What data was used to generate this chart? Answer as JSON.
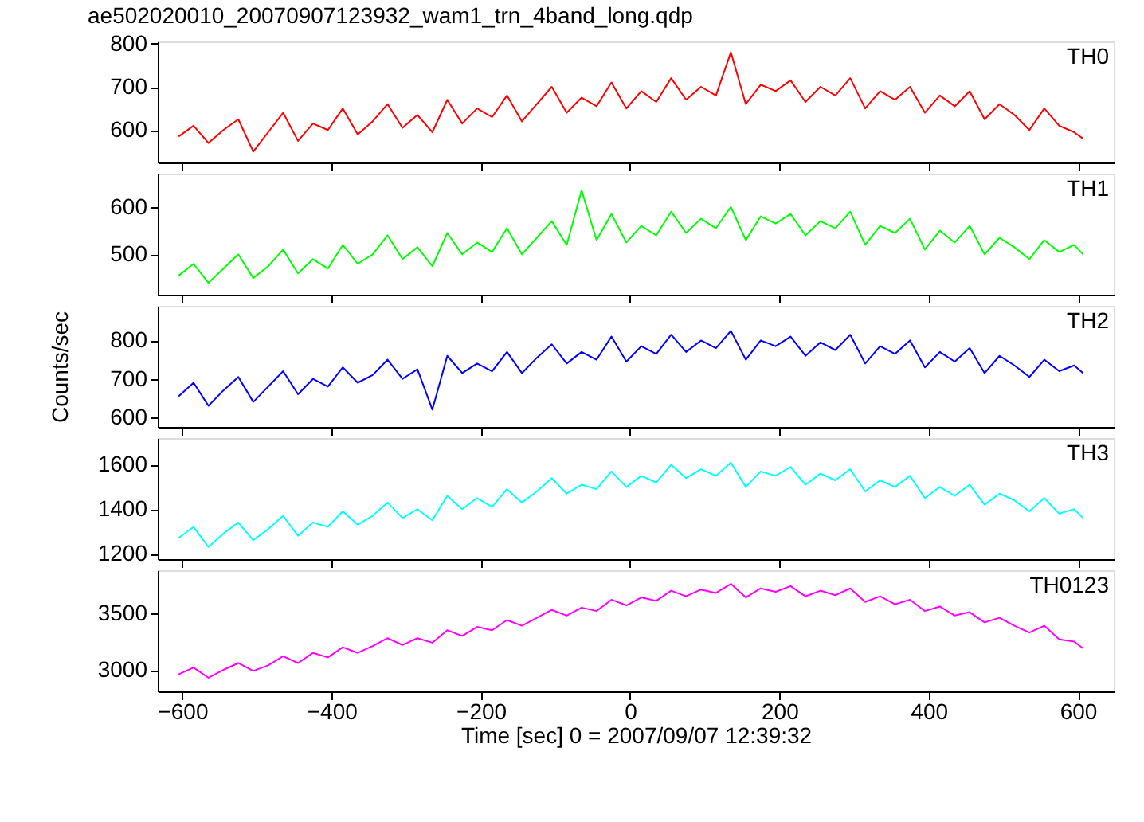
{
  "chart_data": [
    {
      "type": "line",
      "title": "ae502020010_20070907123932_wam1_trn_4band_long.qdp",
      "tick_labels": "y",
      "xlim": [
        -633,
        648
      ],
      "xticks": [
        -600,
        -400,
        -200,
        0,
        200,
        400,
        600
      ],
      "ylim": [
        525,
        805
      ],
      "yticks": [
        600,
        700,
        800
      ],
      "x": [
        -605,
        -585,
        -565,
        -545,
        -525,
        -505,
        -485,
        -465,
        -445,
        -425,
        -405,
        -385,
        -365,
        -345,
        -325,
        -305,
        -285,
        -265,
        -245,
        -225,
        -205,
        -185,
        -165,
        -145,
        -125,
        -105,
        -85,
        -65,
        -45,
        -25,
        -5,
        15,
        35,
        55,
        75,
        95,
        115,
        135,
        155,
        175,
        195,
        215,
        235,
        255,
        275,
        295,
        315,
        335,
        355,
        375,
        395,
        415,
        435,
        455,
        475,
        495,
        515,
        535,
        555,
        575,
        595,
        607
      ],
      "series": [
        {
          "name": "TH0",
          "color": "#ff0000",
          "values": [
            585,
            610,
            570,
            600,
            625,
            550,
            595,
            640,
            575,
            615,
            600,
            650,
            590,
            620,
            660,
            605,
            635,
            595,
            670,
            615,
            650,
            630,
            680,
            620,
            660,
            700,
            640,
            675,
            655,
            710,
            650,
            690,
            665,
            720,
            670,
            700,
            680,
            780,
            660,
            705,
            690,
            715,
            665,
            700,
            680,
            720,
            650,
            690,
            670,
            700,
            640,
            680,
            655,
            690,
            625,
            660,
            635,
            600,
            650,
            610,
            595,
            580
          ]
        }
      ]
    },
    {
      "type": "line",
      "tick_labels": "y",
      "xlim": [
        -633,
        648
      ],
      "xticks": [
        -600,
        -400,
        -200,
        0,
        200,
        400,
        600
      ],
      "ylim": [
        415,
        670
      ],
      "yticks": [
        500,
        600
      ],
      "x": [
        -605,
        -585,
        -565,
        -545,
        -525,
        -505,
        -485,
        -465,
        -445,
        -425,
        -405,
        -385,
        -365,
        -345,
        -325,
        -305,
        -285,
        -265,
        -245,
        -225,
        -205,
        -185,
        -165,
        -145,
        -125,
        -105,
        -85,
        -65,
        -45,
        -25,
        -5,
        15,
        35,
        55,
        75,
        95,
        115,
        135,
        155,
        175,
        195,
        215,
        235,
        255,
        275,
        295,
        315,
        335,
        355,
        375,
        395,
        415,
        435,
        455,
        475,
        495,
        515,
        535,
        555,
        575,
        595,
        607
      ],
      "series": [
        {
          "name": "TH1",
          "color": "#00ff00",
          "values": [
            455,
            480,
            440,
            470,
            500,
            450,
            475,
            510,
            460,
            490,
            470,
            520,
            480,
            500,
            540,
            490,
            515,
            475,
            545,
            500,
            525,
            505,
            555,
            500,
            535,
            570,
            520,
            635,
            530,
            585,
            525,
            560,
            540,
            590,
            545,
            575,
            555,
            600,
            530,
            580,
            565,
            585,
            540,
            570,
            555,
            590,
            520,
            560,
            545,
            575,
            510,
            550,
            525,
            560,
            500,
            535,
            515,
            490,
            530,
            505,
            520,
            500
          ]
        }
      ]
    },
    {
      "type": "line",
      "tick_labels": "y",
      "ylabel": "Counts/sec",
      "xlim": [
        -633,
        648
      ],
      "xticks": [
        -600,
        -400,
        -200,
        0,
        200,
        400,
        600
      ],
      "ylim": [
        575,
        890
      ],
      "yticks": [
        600,
        700,
        800
      ],
      "x": [
        -605,
        -585,
        -565,
        -545,
        -525,
        -505,
        -485,
        -465,
        -445,
        -425,
        -405,
        -385,
        -365,
        -345,
        -325,
        -305,
        -285,
        -265,
        -245,
        -225,
        -205,
        -185,
        -165,
        -145,
        -125,
        -105,
        -85,
        -65,
        -45,
        -25,
        -5,
        15,
        35,
        55,
        75,
        95,
        115,
        135,
        155,
        175,
        195,
        215,
        235,
        255,
        275,
        295,
        315,
        335,
        355,
        375,
        395,
        415,
        435,
        455,
        475,
        495,
        515,
        535,
        555,
        575,
        595,
        607
      ],
      "series": [
        {
          "name": "TH2",
          "color": "#0000ff",
          "values": [
            655,
            690,
            630,
            670,
            705,
            640,
            680,
            720,
            660,
            700,
            680,
            730,
            690,
            710,
            750,
            700,
            725,
            620,
            760,
            715,
            740,
            720,
            770,
            715,
            755,
            790,
            740,
            770,
            750,
            810,
            745,
            785,
            765,
            815,
            770,
            800,
            780,
            825,
            750,
            800,
            785,
            810,
            760,
            795,
            775,
            815,
            740,
            785,
            765,
            800,
            730,
            770,
            745,
            780,
            715,
            760,
            735,
            705,
            750,
            720,
            735,
            715
          ]
        }
      ]
    },
    {
      "type": "line",
      "tick_labels": "y",
      "xlim": [
        -633,
        648
      ],
      "xticks": [
        -600,
        -400,
        -200,
        0,
        200,
        400,
        600
      ],
      "ylim": [
        1175,
        1720
      ],
      "yticks": [
        1200,
        1400,
        1600
      ],
      "x": [
        -605,
        -585,
        -565,
        -545,
        -525,
        -505,
        -485,
        -465,
        -445,
        -425,
        -405,
        -385,
        -365,
        -345,
        -325,
        -305,
        -285,
        -265,
        -245,
        -225,
        -205,
        -185,
        -165,
        -145,
        -125,
        -105,
        -85,
        -65,
        -45,
        -25,
        -5,
        15,
        35,
        55,
        75,
        95,
        115,
        135,
        155,
        175,
        195,
        215,
        235,
        255,
        275,
        295,
        315,
        335,
        355,
        375,
        395,
        415,
        435,
        455,
        475,
        495,
        515,
        535,
        555,
        575,
        595,
        607
      ],
      "series": [
        {
          "name": "TH3",
          "color": "#00ffff",
          "values": [
            1270,
            1320,
            1230,
            1290,
            1340,
            1260,
            1310,
            1370,
            1280,
            1340,
            1320,
            1390,
            1330,
            1370,
            1430,
            1360,
            1400,
            1350,
            1460,
            1400,
            1450,
            1410,
            1490,
            1430,
            1480,
            1540,
            1470,
            1510,
            1490,
            1570,
            1500,
            1550,
            1520,
            1600,
            1540,
            1580,
            1550,
            1610,
            1500,
            1570,
            1550,
            1590,
            1510,
            1560,
            1530,
            1580,
            1480,
            1530,
            1500,
            1550,
            1450,
            1500,
            1460,
            1510,
            1420,
            1470,
            1440,
            1390,
            1450,
            1380,
            1400,
            1360
          ]
        }
      ]
    },
    {
      "type": "line",
      "xlabel": "Time [sec] 0 = 2007/09/07 12:39:32",
      "xlim": [
        -633,
        648
      ],
      "xticks": [
        -600,
        -400,
        -200,
        0,
        200,
        400,
        600
      ],
      "ylim": [
        2810,
        3880
      ],
      "yticks": [
        3000,
        3500
      ],
      "x": [
        -605,
        -585,
        -565,
        -545,
        -525,
        -505,
        -485,
        -465,
        -445,
        -425,
        -405,
        -385,
        -365,
        -345,
        -325,
        -305,
        -285,
        -265,
        -245,
        -225,
        -205,
        -185,
        -165,
        -145,
        -125,
        -105,
        -85,
        -65,
        -45,
        -25,
        -5,
        15,
        35,
        55,
        75,
        95,
        115,
        135,
        155,
        175,
        195,
        215,
        235,
        255,
        275,
        295,
        315,
        335,
        355,
        375,
        395,
        415,
        435,
        455,
        475,
        495,
        515,
        535,
        555,
        575,
        595,
        607
      ],
      "series": [
        {
          "name": "TH0123",
          "color": "#ff00ff",
          "values": [
            2960,
            3020,
            2930,
            3000,
            3060,
            2990,
            3040,
            3120,
            3060,
            3150,
            3110,
            3200,
            3150,
            3210,
            3280,
            3220,
            3280,
            3240,
            3350,
            3300,
            3380,
            3350,
            3440,
            3390,
            3460,
            3530,
            3480,
            3550,
            3520,
            3620,
            3570,
            3640,
            3610,
            3700,
            3650,
            3710,
            3680,
            3760,
            3640,
            3720,
            3690,
            3740,
            3650,
            3700,
            3660,
            3720,
            3600,
            3650,
            3580,
            3620,
            3520,
            3560,
            3480,
            3510,
            3420,
            3460,
            3390,
            3330,
            3390,
            3270,
            3250,
            3190
          ]
        }
      ]
    }
  ]
}
